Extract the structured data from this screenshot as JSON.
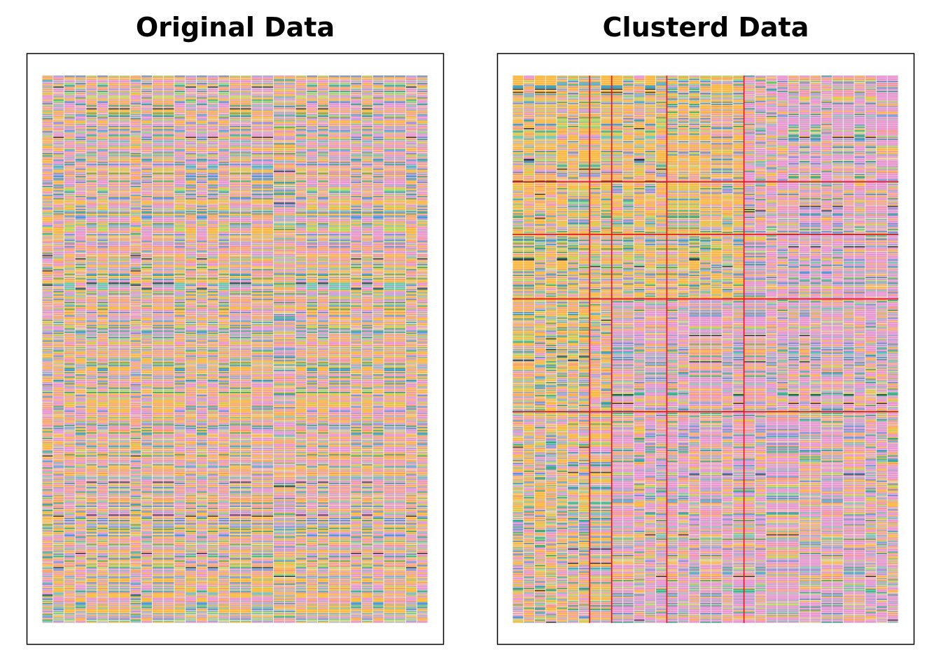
{
  "chart_data": [
    {
      "type": "heatmap",
      "title": "Original Data",
      "n_cols": 35,
      "n_rows": 500
    },
    {
      "type": "heatmap",
      "title": "Clusterd Data",
      "n_cols": 35,
      "n_rows": 500,
      "col_breaks": [
        7,
        9,
        14,
        21
      ],
      "row_breaks": [
        97,
        145,
        204,
        307
      ],
      "break_color": "#e8141c"
    }
  ]
}
